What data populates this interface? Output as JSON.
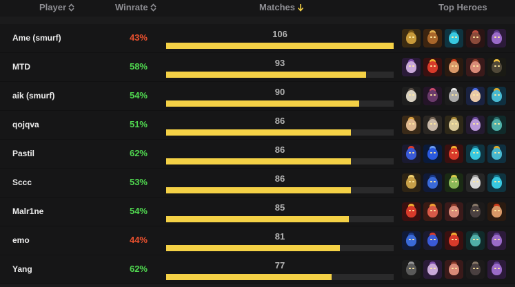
{
  "headers": {
    "player": "Player",
    "winrate": "Winrate",
    "matches": "Matches",
    "top_heroes": "Top Heroes"
  },
  "colors": {
    "win_good": "#4fd64f",
    "win_bad": "#e8502e",
    "bar_fill": "#f4d146",
    "bar_track": "#2a2a2b",
    "sort_active": "#f4d146"
  },
  "max_matches": 106,
  "rows": [
    {
      "player": "Ame (smurf)",
      "winrate": "43%",
      "win_status": "bad",
      "matches": "106",
      "matches_value": 106,
      "heroes": [
        {
          "name": "hero-portrait-yellow-mask",
          "bg": "#3a2a12",
          "head": "#c89a3a",
          "crest": "#7a5818"
        },
        {
          "name": "hero-portrait-brown-beast",
          "bg": "#3c2410",
          "head": "#a8662a",
          "crest": "#e0b050"
        },
        {
          "name": "hero-portrait-cyan-spirit",
          "bg": "#0f3440",
          "head": "#38c8e0",
          "crest": "#1a7890"
        },
        {
          "name": "hero-portrait-dark-red",
          "bg": "#2a1414",
          "head": "#8a4a3a",
          "crest": "#c05040"
        },
        {
          "name": "hero-portrait-purple-void",
          "bg": "#2c1a3a",
          "head": "#9a6ac8",
          "crest": "#5a3a88"
        }
      ]
    },
    {
      "player": "MTD",
      "winrate": "58%",
      "win_status": "good",
      "matches": "93",
      "matches_value": 93,
      "heroes": [
        {
          "name": "hero-portrait-purple-helm",
          "bg": "#2a1a38",
          "head": "#c8a8d8",
          "crest": "#7a4aa8"
        },
        {
          "name": "hero-portrait-red-armor",
          "bg": "#3a1010",
          "head": "#d83a2a",
          "crest": "#f0b030"
        },
        {
          "name": "hero-portrait-red-hair",
          "bg": "#2a1a10",
          "head": "#d89868",
          "crest": "#c83a1a"
        },
        {
          "name": "hero-portrait-pink-beast",
          "bg": "#3a1a1a",
          "head": "#d88a78",
          "crest": "#8a3a2a"
        },
        {
          "name": "hero-portrait-gold-horns",
          "bg": "#1a1a14",
          "head": "#504838",
          "crest": "#f0c040"
        }
      ]
    },
    {
      "player": "aik (smurf)",
      "winrate": "54%",
      "win_status": "good",
      "matches": "90",
      "matches_value": 90,
      "heroes": [
        {
          "name": "hero-portrait-skull",
          "bg": "#1e1e1e",
          "head": "#d8d0c0",
          "crest": "#5a5048"
        },
        {
          "name": "hero-portrait-dark-purple",
          "bg": "#241428",
          "head": "#6a3a6a",
          "crest": "#c84a6a"
        },
        {
          "name": "hero-portrait-white-horns",
          "bg": "#1c1c1c",
          "head": "#a8a8a8",
          "crest": "#e8e8e8"
        },
        {
          "name": "hero-portrait-blue-witch",
          "bg": "#1a2240",
          "head": "#e8c8a8",
          "crest": "#4a6ae0"
        },
        {
          "name": "hero-portrait-cyan-golem",
          "bg": "#0f3040",
          "head": "#48b8d0",
          "crest": "#d8a830"
        }
      ]
    },
    {
      "player": "qojqva",
      "winrate": "51%",
      "win_status": "good",
      "matches": "86",
      "matches_value": 86,
      "heroes": [
        {
          "name": "hero-portrait-blonde",
          "bg": "#3a2a18",
          "head": "#e0b890",
          "crest": "#d8a040"
        },
        {
          "name": "hero-portrait-grey-mask",
          "bg": "#2a2622",
          "head": "#c8b8a8",
          "crest": "#7a6a5a"
        },
        {
          "name": "hero-portrait-gold-mask",
          "bg": "#2e2818",
          "head": "#d8c898",
          "crest": "#a88838"
        },
        {
          "name": "hero-portrait-violet-ghost",
          "bg": "#241a30",
          "head": "#b898d8",
          "crest": "#6a4a98"
        },
        {
          "name": "hero-portrait-teal-wizard",
          "bg": "#102a2a",
          "head": "#50b0a8",
          "crest": "#2a6a68"
        }
      ]
    },
    {
      "player": "Pastil",
      "winrate": "62%",
      "win_status": "good",
      "matches": "86",
      "matches_value": 86,
      "heroes": [
        {
          "name": "hero-portrait-blue-red-knight",
          "bg": "#1a1a30",
          "head": "#3a5ad8",
          "crest": "#d83a2a"
        },
        {
          "name": "hero-portrait-blue-orb",
          "bg": "#0a1a3a",
          "head": "#2a5ae0",
          "crest": "#6a9af0"
        },
        {
          "name": "hero-portrait-red-armor",
          "bg": "#3a1010",
          "head": "#d83a2a",
          "crest": "#f0b030"
        },
        {
          "name": "hero-portrait-cyan-spirit",
          "bg": "#0f3440",
          "head": "#38c8e0",
          "crest": "#1a7890"
        },
        {
          "name": "hero-portrait-cyan-golem",
          "bg": "#0f3040",
          "head": "#48b8d0",
          "crest": "#d8a830"
        }
      ]
    },
    {
      "player": "Sccc",
      "winrate": "53%",
      "win_status": "good",
      "matches": "86",
      "matches_value": 86,
      "heroes": [
        {
          "name": "hero-portrait-gold-crown",
          "bg": "#2e2414",
          "head": "#c8a048",
          "crest": "#f0d070"
        },
        {
          "name": "hero-portrait-blue-demon",
          "bg": "#101a38",
          "head": "#3a6ad8",
          "crest": "#1a3a88"
        },
        {
          "name": "hero-portrait-green-medusa",
          "bg": "#1a2a14",
          "head": "#8ab858",
          "crest": "#d8c848"
        },
        {
          "name": "hero-portrait-white-beard",
          "bg": "#262626",
          "head": "#d8d8d8",
          "crest": "#9a9a9a"
        },
        {
          "name": "hero-portrait-cyan-spirit",
          "bg": "#0f3440",
          "head": "#38c8e0",
          "crest": "#1a7890"
        }
      ]
    },
    {
      "player": "Malr1ne",
      "winrate": "54%",
      "win_status": "good",
      "matches": "85",
      "matches_value": 85,
      "heroes": [
        {
          "name": "hero-portrait-red-armor",
          "bg": "#3a1010",
          "head": "#d83a2a",
          "crest": "#f0b030"
        },
        {
          "name": "hero-portrait-red-helm",
          "bg": "#3a1a14",
          "head": "#d85a48",
          "crest": "#f0a030"
        },
        {
          "name": "hero-portrait-pink-beast",
          "bg": "#3a1a1a",
          "head": "#d88a78",
          "crest": "#8a3a2a"
        },
        {
          "name": "hero-portrait-dark-beast",
          "bg": "#1c1a1a",
          "head": "#4a4040",
          "crest": "#8a7a6a"
        },
        {
          "name": "hero-portrait-red-hair",
          "bg": "#2a1a10",
          "head": "#d89868",
          "crest": "#c83a1a"
        }
      ]
    },
    {
      "player": "emo",
      "winrate": "44%",
      "win_status": "bad",
      "matches": "81",
      "matches_value": 81,
      "heroes": [
        {
          "name": "hero-portrait-blue-demon",
          "bg": "#101a38",
          "head": "#3a6ad8",
          "crest": "#1a3a88"
        },
        {
          "name": "hero-portrait-blue-red-knight",
          "bg": "#1a1a30",
          "head": "#3a5ad8",
          "crest": "#d83a2a"
        },
        {
          "name": "hero-portrait-red-armor",
          "bg": "#3a1010",
          "head": "#d83a2a",
          "crest": "#f0b030"
        },
        {
          "name": "hero-portrait-teal-wizard",
          "bg": "#102a2a",
          "head": "#50b0a8",
          "crest": "#2a6a68"
        },
        {
          "name": "hero-portrait-purple-void",
          "bg": "#2c1a3a",
          "head": "#9a6ac8",
          "crest": "#5a3a88"
        }
      ]
    },
    {
      "player": "Yang",
      "winrate": "62%",
      "win_status": "good",
      "matches": "77",
      "matches_value": 77,
      "heroes": [
        {
          "name": "hero-portrait-dark-horns",
          "bg": "#1c1c1c",
          "head": "#5a5a5a",
          "crest": "#9a9a9a"
        },
        {
          "name": "hero-portrait-purple-helm",
          "bg": "#2a1a38",
          "head": "#c8a8d8",
          "crest": "#7a4aa8"
        },
        {
          "name": "hero-portrait-pink-beast",
          "bg": "#3a1a1a",
          "head": "#d88a78",
          "crest": "#8a3a2a"
        },
        {
          "name": "hero-portrait-dark-beast",
          "bg": "#1c1a1a",
          "head": "#4a4040",
          "crest": "#8a7a6a"
        },
        {
          "name": "hero-portrait-purple-void",
          "bg": "#2c1a3a",
          "head": "#9a6ac8",
          "crest": "#5a3a88"
        }
      ]
    }
  ]
}
